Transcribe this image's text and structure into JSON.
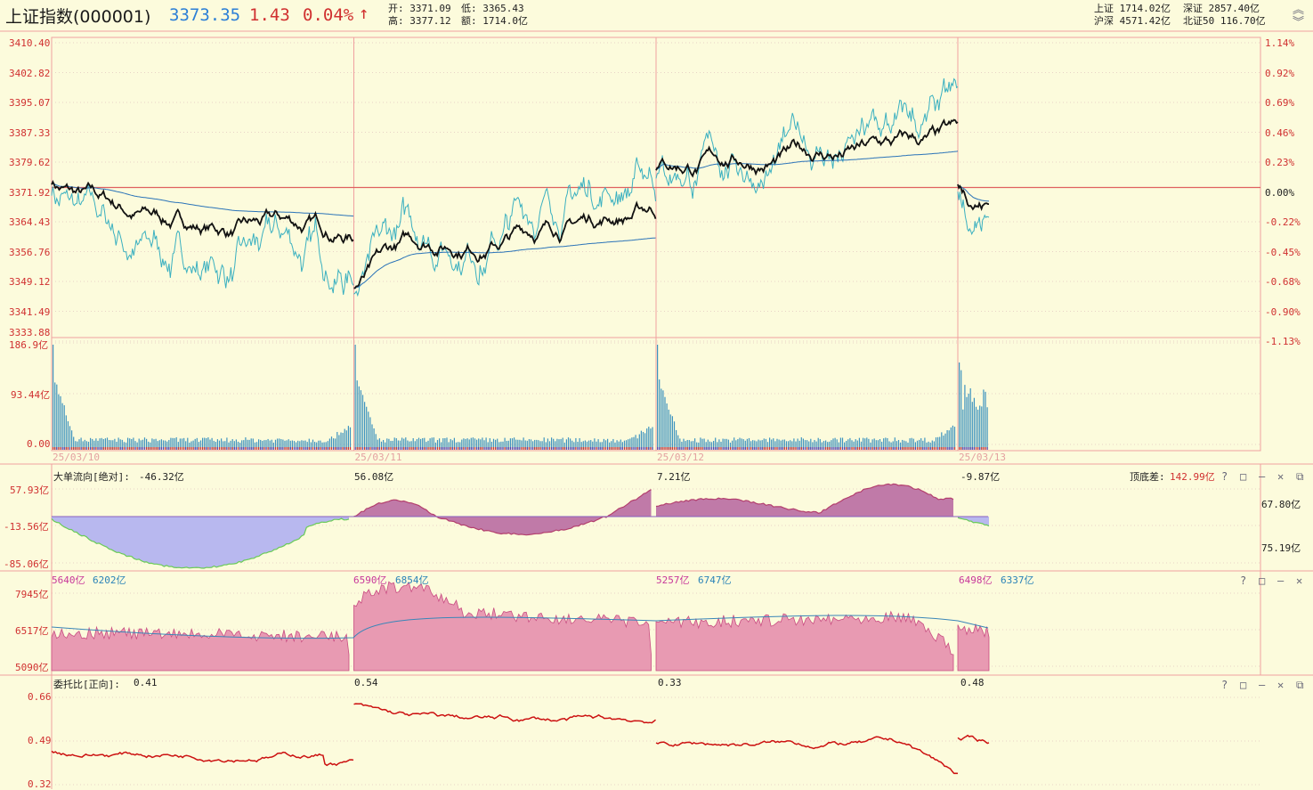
{
  "header": {
    "name": "上证指数",
    "code": "(000001)",
    "price": "3373.35",
    "change": "1.43",
    "pct": "0.04%",
    "arrow": "↑",
    "open_label": "开:",
    "open": "3371.09",
    "low_label": "低:",
    "low": "3365.43",
    "high_label": "高:",
    "high": "3377.12",
    "amount_label": "额:",
    "amount": "1714.0亿",
    "sh_label": "上证",
    "sh": "1714.02亿",
    "sz_label": "深证",
    "sz": "2857.40亿",
    "hs_label": "沪深",
    "hs": "4571.42亿",
    "bz_label": "北证50",
    "bz": "116.70亿"
  },
  "price_axis": {
    "left": [
      "3410.40",
      "3402.82",
      "3395.07",
      "3387.33",
      "3379.62",
      "3371.92",
      "3364.43",
      "3356.76",
      "3349.12",
      "3341.49",
      "3333.88"
    ],
    "right": [
      "1.14%",
      "0.92%",
      "0.69%",
      "0.46%",
      "0.23%",
      "0.00%",
      "-0.22%",
      "-0.45%",
      "-0.68%",
      "-0.90%",
      "-1.13%"
    ]
  },
  "volume_axis": [
    "186.9亿",
    "93.44亿",
    "0.00"
  ],
  "dates": [
    "25/03/10",
    "25/03/11",
    "25/03/12",
    "25/03/13"
  ],
  "flow_panel": {
    "title": "大单流向[绝对]:",
    "values": [
      "-46.32亿",
      "56.08亿",
      "7.21亿",
      "-9.87亿"
    ],
    "diff_label": "顶底差:",
    "diff_value": "142.99亿",
    "axis": [
      "57.93亿",
      "-13.56亿",
      "-85.06亿"
    ],
    "right_values": [
      "67.80亿",
      "75.19亿"
    ]
  },
  "amount_panel": {
    "pairs": [
      [
        "5640亿",
        "6202亿"
      ],
      [
        "6590亿",
        "6854亿"
      ],
      [
        "5257亿",
        "6747亿"
      ],
      [
        "6498亿",
        "6337亿"
      ]
    ],
    "axis": [
      "7945亿",
      "6517亿",
      "5090亿"
    ]
  },
  "ratio_panel": {
    "title": "委托比[正向]:",
    "values": [
      "0.41",
      "0.54",
      "0.33",
      "0.48"
    ],
    "axis": [
      "0.66",
      "0.49",
      "0.32"
    ]
  },
  "controls": {
    "help": "?",
    "max": "□",
    "min": "—",
    "close": "✕",
    "restore": "⧉"
  },
  "colors": {
    "bg": "#fcfbdc",
    "grid": "#f0a0a0",
    "up": "#d03030",
    "down": "#2c7fd6",
    "flow_pos": "#c07aa8",
    "flow_neg": "#b8b8ef",
    "amount": "#e89ab2",
    "ratio": "#cc1111"
  }
}
